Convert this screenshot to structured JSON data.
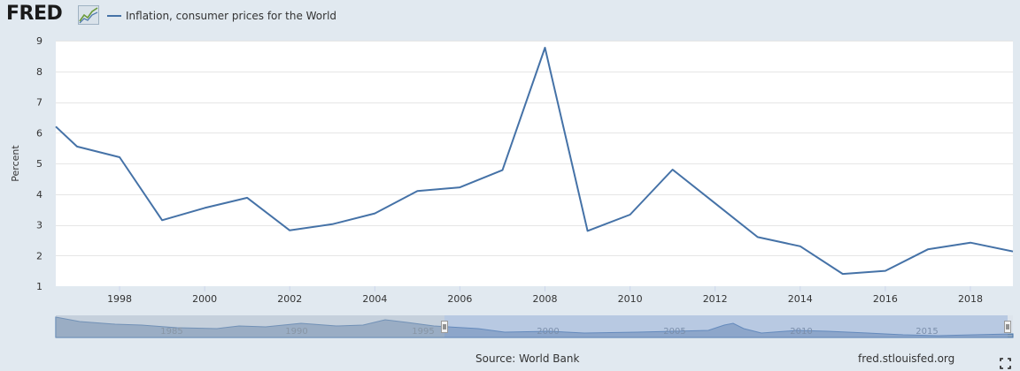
{
  "brand": {
    "logo_text": "FRED"
  },
  "legend": {
    "label": "Inflation, consumer prices for the World"
  },
  "chart_data": {
    "type": "line",
    "ylabel": "Percent",
    "xlim": [
      1996.5,
      2019
    ],
    "ylim": [
      1,
      9
    ],
    "y_ticks": [
      1,
      2,
      3,
      4,
      5,
      6,
      7,
      8,
      9
    ],
    "x_ticks": [
      1998,
      2000,
      2002,
      2004,
      2006,
      2008,
      2010,
      2012,
      2014,
      2016,
      2018
    ],
    "grid": true,
    "series": [
      {
        "name": "Inflation, consumer prices for the World",
        "color": "#4572a7",
        "x": [
          1996.5,
          1997,
          1998,
          1999,
          2000,
          2001,
          2002,
          2003,
          2004,
          2005,
          2006,
          2007,
          2008,
          2009,
          2010,
          2011,
          2012,
          2013,
          2014,
          2015,
          2016,
          2017,
          2018,
          2019
        ],
        "y": [
          6.2,
          5.55,
          5.2,
          3.15,
          3.55,
          3.88,
          2.82,
          3.02,
          3.37,
          4.1,
          4.22,
          4.78,
          8.77,
          2.8,
          3.33,
          4.8,
          3.7,
          2.6,
          2.3,
          1.4,
          1.5,
          2.2,
          2.42,
          2.13
        ]
      }
    ]
  },
  "navigator": {
    "tick_labels": [
      "1985",
      "1990",
      "1995",
      "2000",
      "2005",
      "2010",
      "2015"
    ]
  },
  "footer": {
    "source": "Source: World Bank",
    "site": "fred.stlouisfed.org"
  }
}
